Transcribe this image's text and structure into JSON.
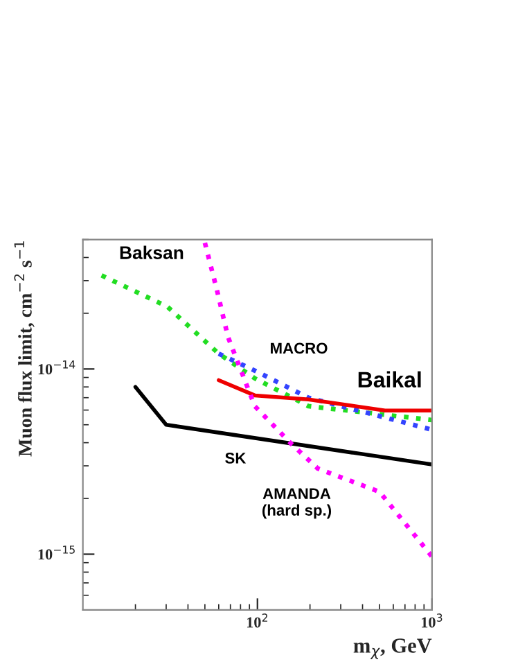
{
  "chart_data": {
    "type": "line",
    "xlabel": "m$_{χ}$, GeV",
    "ylabel": "Muon flux limit, cm$^{−2}$ s$^{−1}$",
    "log": "xy",
    "xlim": [
      10,
      1000
    ],
    "ylim": [
      5e-16,
      5e-14
    ],
    "xticks": [
      {
        "value": 100,
        "label": "10$^{2}$"
      },
      {
        "value": 1000,
        "label": "10$^{3}$"
      }
    ],
    "yticks": [
      {
        "value": 1e-15,
        "label": "10$^{−15}$"
      },
      {
        "value": 1e-14,
        "label": "10$^{−14}$"
      }
    ],
    "grid": false,
    "legend": false,
    "series": [
      {
        "name": "Baksan",
        "color": "#22dd22",
        "line_style": "dotted",
        "x": [
          12.8,
          30.5,
          60,
          96.6,
          196,
          1000
        ],
        "values": [
          3.2e-14,
          2.17e-14,
          1.21e-14,
          8.9e-15,
          6.3e-15,
          5.3e-15
        ]
      },
      {
        "name": "MACRO",
        "color": "#3344ff",
        "line_style": "dotted",
        "x": [
          60,
          96.6,
          196,
          1000
        ],
        "values": [
          1.21e-14,
          9.8e-15,
          7e-15,
          4.7e-15
        ]
      },
      {
        "name": "Baikal",
        "color": "#ee0000",
        "line_style": "solid",
        "x": [
          60,
          96.6,
          196,
          538,
          1000
        ],
        "values": [
          8.7e-15,
          7.2e-15,
          6.85e-15,
          5.97e-15,
          5.97e-15
        ]
      },
      {
        "name": "SK",
        "color": "#000000",
        "line_style": "solid",
        "x": [
          20,
          30,
          1000
        ],
        "values": [
          8e-15,
          5e-15,
          3.05e-15
        ]
      },
      {
        "name": "AMANDA\n(hard sp.)",
        "color": "#ff00ff",
        "line_style": "dotted",
        "x": [
          50,
          59,
          67.8,
          96.6,
          156,
          222,
          501,
          1000
        ],
        "values": [
          4.8e-14,
          2.6e-14,
          1.49e-14,
          6.3e-15,
          3.95e-15,
          2.9e-15,
          2.17e-15,
          9.7e-16
        ]
      }
    ]
  }
}
